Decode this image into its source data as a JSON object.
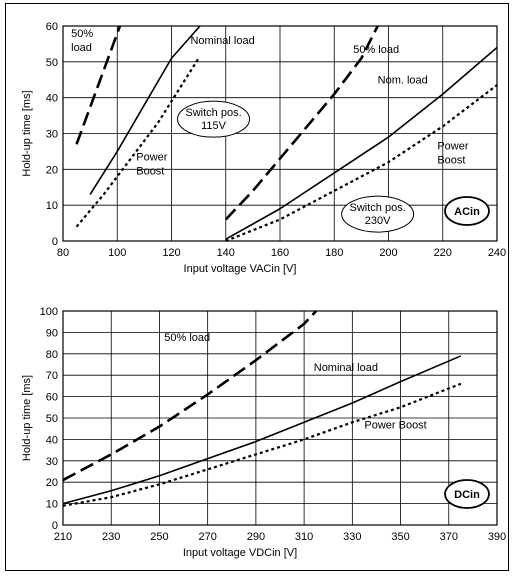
{
  "chart_data": [
    {
      "type": "line",
      "title": "",
      "xlabel": "Input voltage VACin [V]",
      "ylabel": "Hold-up time [ms]",
      "xlim": [
        80,
        240
      ],
      "ylim": [
        0,
        60
      ],
      "xticks": [
        80,
        100,
        120,
        140,
        160,
        180,
        200,
        220,
        240
      ],
      "yticks": [
        0,
        10,
        20,
        30,
        40,
        50,
        60
      ],
      "grid": true,
      "badge": "ACin",
      "series": [
        {
          "style": "dash",
          "x": [
            85,
            101
          ],
          "y": [
            27,
            60
          ]
        },
        {
          "style": "solid",
          "x": [
            90,
            100,
            110,
            120,
            130.5
          ],
          "y": [
            13,
            25,
            38,
            51,
            60
          ]
        },
        {
          "style": "dot",
          "x": [
            85,
            95,
            105,
            115,
            125,
            130
          ],
          "y": [
            4,
            13,
            23,
            33,
            45,
            51
          ]
        },
        {
          "style": "dash",
          "x": [
            140,
            150,
            160,
            170,
            180,
            190,
            196
          ],
          "y": [
            6,
            14,
            23,
            32,
            41,
            51,
            60
          ]
        },
        {
          "style": "solid",
          "x": [
            140,
            160,
            180,
            200,
            220,
            240
          ],
          "y": [
            0.5,
            9,
            19,
            29,
            41,
            54
          ]
        },
        {
          "style": "dot",
          "x": [
            140,
            160,
            180,
            200,
            220,
            240
          ],
          "y": [
            0,
            6,
            14,
            22,
            32,
            43.5
          ]
        }
      ],
      "annotations": [
        {
          "lines": [
            "50%",
            "load"
          ],
          "x": 83,
          "y": 57
        },
        {
          "lines": [
            "Nominal load"
          ],
          "x": 127,
          "y": 55
        },
        {
          "lines": [
            "50% load"
          ],
          "x": 187,
          "y": 52.5
        },
        {
          "lines": [
            "Nom. load"
          ],
          "x": 196,
          "y": 44
        },
        {
          "lines": [
            "Power",
            "Boost"
          ],
          "x": 107,
          "y": 22.5
        },
        {
          "lines": [
            "Power",
            "Boost"
          ],
          "x": 218,
          "y": 25.5
        }
      ],
      "ellipses": [
        {
          "lines": [
            "Switch pos.",
            "115V"
          ],
          "cx": 135.5,
          "cy": 34
        },
        {
          "lines": [
            "Switch pos.",
            "230V"
          ],
          "cx": 196,
          "cy": 7.5
        }
      ]
    },
    {
      "type": "line",
      "title": "",
      "xlabel": "Input voltage VDCin [V]",
      "ylabel": "Hold-up time [ms]",
      "xlim": [
        210,
        390
      ],
      "ylim": [
        0,
        100
      ],
      "xticks": [
        210,
        230,
        250,
        270,
        290,
        310,
        330,
        350,
        370,
        390
      ],
      "yticks": [
        0,
        10,
        20,
        30,
        40,
        50,
        60,
        70,
        80,
        90,
        100
      ],
      "grid": true,
      "badge": "DCin",
      "series": [
        {
          "style": "dash",
          "x": [
            210,
            230,
            250,
            270,
            290,
            310,
            315
          ],
          "y": [
            21,
            33,
            46,
            61,
            77,
            94,
            100
          ]
        },
        {
          "style": "solid",
          "x": [
            210,
            230,
            250,
            270,
            290,
            310,
            330,
            350,
            375
          ],
          "y": [
            10,
            16,
            23,
            31,
            39,
            48,
            57,
            67,
            79
          ]
        },
        {
          "style": "dot",
          "x": [
            210,
            230,
            250,
            270,
            290,
            310,
            330,
            350,
            375
          ],
          "y": [
            9,
            13,
            19,
            26,
            33,
            40,
            48,
            55,
            66
          ]
        }
      ],
      "annotations": [
        {
          "lines": [
            "50% load"
          ],
          "x": 252,
          "y": 86
        },
        {
          "lines": [
            "Nominal load"
          ],
          "x": 314,
          "y": 72
        },
        {
          "lines": [
            "Power Boost"
          ],
          "x": 335,
          "y": 45
        }
      ],
      "ellipses": []
    }
  ]
}
